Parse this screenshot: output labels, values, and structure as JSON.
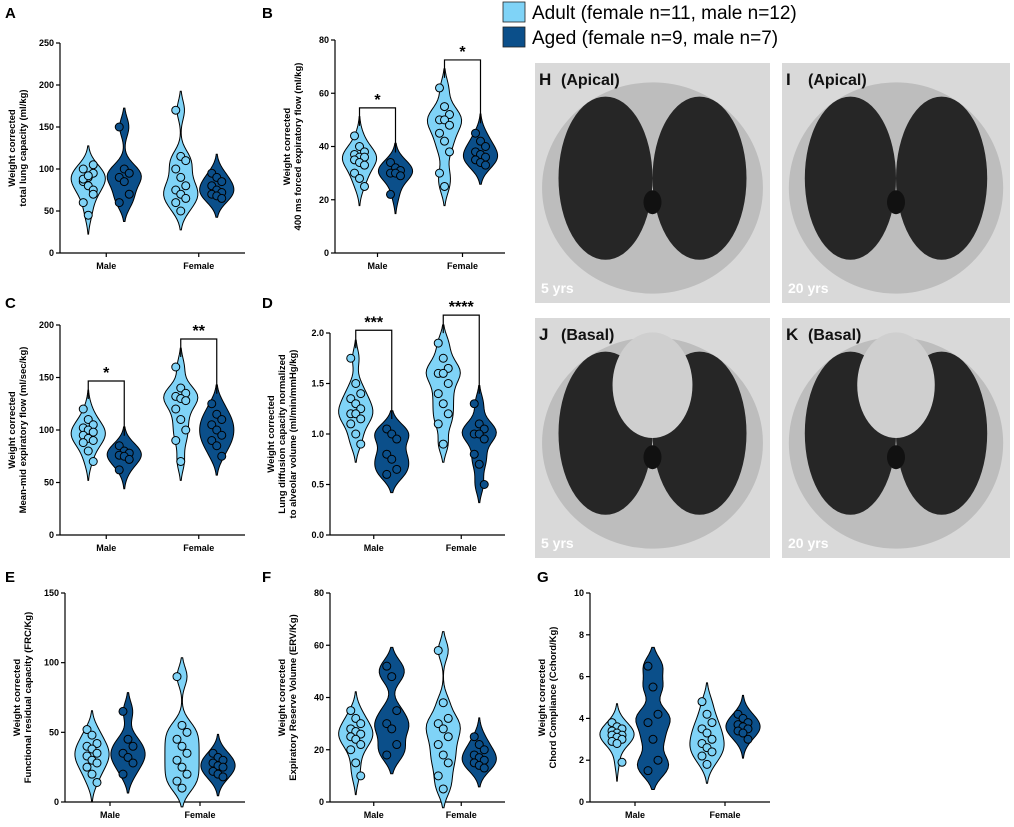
{
  "legend": [
    {
      "label": "Adult (female n=11, male n=12)",
      "color": "#7fd3f7"
    },
    {
      "label": "Aged (female n=9, male n=7)",
      "color": "#0b4f8a"
    }
  ],
  "images": [
    {
      "letter": "H",
      "view": "(Apical)",
      "age": "5 yrs"
    },
    {
      "letter": "I",
      "view": "(Apical)",
      "age": "20 yrs"
    },
    {
      "letter": "J",
      "view": "(Basal)",
      "age": "5 yrs"
    },
    {
      "letter": "K",
      "view": "(Basal)",
      "age": "20 yrs"
    }
  ],
  "chart_data": [
    {
      "type": "violin",
      "panel": "A",
      "ylabel": [
        "Weight corrected",
        "total lung capacity (ml/kg)"
      ],
      "categories": [
        "Male",
        "Female"
      ],
      "ylim": [
        0,
        250
      ],
      "yticks": [
        0,
        50,
        100,
        150,
        200,
        250
      ],
      "series": [
        {
          "values": [
            [
              85,
              90,
              95,
              100,
              80,
              75,
              88,
              92,
              70,
              60,
              45,
              105
            ],
            [
              170,
              115,
              110,
              100,
              90,
              80,
              75,
              70,
              65,
              60,
              50
            ]
          ]
        },
        {
          "values": [
            [
              150,
              100,
              95,
              90,
              85,
              70,
              60
            ],
            [
              95,
              90,
              85,
              80,
              75,
              72,
              70,
              68,
              65
            ]
          ]
        }
      ],
      "annotations": []
    },
    {
      "type": "violin",
      "panel": "B",
      "ylabel": [
        "Weight corrected",
        "400 ms forced expiratory flow (ml/kg)"
      ],
      "categories": [
        "Male",
        "Female"
      ],
      "ylim": [
        0,
        80
      ],
      "yticks": [
        0,
        20,
        40,
        60,
        80
      ],
      "series": [
        {
          "values": [
            [
              44,
              40,
              38,
              37,
              36,
              36,
              35,
              34,
              33,
              30,
              28,
              25
            ],
            [
              62,
              55,
              52,
              50,
              50,
              48,
              45,
              42,
              38,
              30,
              25
            ]
          ]
        },
        {
          "values": [
            [
              34,
              32,
              31,
              30,
              30,
              29,
              22
            ],
            [
              45,
              42,
              40,
              38,
              37,
              36,
              35,
              34,
              33
            ]
          ]
        }
      ],
      "annotations": [
        {
          "text": "*",
          "category": 0
        },
        {
          "text": "*",
          "category": 1
        }
      ]
    },
    {
      "type": "violin",
      "panel": "C",
      "ylabel": [
        "Weight corrected",
        "Mean-mid expiratory flow (ml/sec/kg)"
      ],
      "categories": [
        "Male",
        "Female"
      ],
      "ylim": [
        0,
        200
      ],
      "yticks": [
        0,
        50,
        100,
        150,
        200
      ],
      "series": [
        {
          "values": [
            [
              120,
              110,
              105,
              102,
              100,
              98,
              95,
              92,
              90,
              88,
              80,
              70
            ],
            [
              160,
              140,
              135,
              132,
              130,
              128,
              120,
              110,
              100,
              90,
              70
            ]
          ]
        },
        {
          "values": [
            [
              85,
              80,
              78,
              76,
              75,
              72,
              62
            ],
            [
              125,
              115,
              110,
              105,
              100,
              95,
              90,
              85,
              75
            ]
          ]
        }
      ],
      "annotations": [
        {
          "text": "*",
          "category": 0
        },
        {
          "text": "**",
          "category": 1
        }
      ]
    },
    {
      "type": "violin",
      "panel": "D",
      "ylabel": [
        "Weight corrected",
        "Lung diffusion capacity  normalized",
        "to alveolar volume (ml/min/mmHg/kg)"
      ],
      "categories": [
        "Male",
        "Female"
      ],
      "ylim": [
        0,
        2
      ],
      "yticks": [
        {
          "value": 0,
          "label": "0.0"
        },
        0.5,
        {
          "value": 1,
          "label": "1.0"
        },
        1.5,
        {
          "value": 2,
          "label": "2.0"
        }
      ],
      "series": [
        {
          "values": [
            [
              1.75,
              1.5,
              1.4,
              1.35,
              1.3,
              1.25,
              1.2,
              1.2,
              1.15,
              1.1,
              1.0,
              0.9
            ],
            [
              1.9,
              1.75,
              1.65,
              1.6,
              1.6,
              1.5,
              1.4,
              1.3,
              1.2,
              1.1,
              0.9
            ]
          ]
        },
        {
          "values": [
            [
              1.05,
              1.0,
              0.95,
              0.8,
              0.75,
              0.65,
              0.6
            ],
            [
              1.3,
              1.1,
              1.05,
              1.0,
              1.0,
              0.95,
              0.8,
              0.7,
              0.5
            ]
          ]
        }
      ],
      "annotations": [
        {
          "text": "***",
          "category": 0
        },
        {
          "text": "****",
          "category": 1
        }
      ]
    },
    {
      "type": "violin",
      "panel": "E",
      "ylabel": [
        "Weight corrected",
        "Functional residual capacity (FRC/Kg)"
      ],
      "categories": [
        "Male",
        "Female"
      ],
      "ylim": [
        0,
        150
      ],
      "yticks": [
        0,
        50,
        100,
        150
      ],
      "series": [
        {
          "values": [
            [
              52,
              48,
              42,
              40,
              38,
              35,
              33,
              30,
              28,
              25,
              20,
              14
            ],
            [
              90,
              55,
              50,
              45,
              40,
              35,
              30,
              25,
              20,
              15,
              10
            ]
          ]
        },
        {
          "values": [
            [
              65,
              45,
              40,
              35,
              32,
              28,
              20
            ],
            [
              35,
              32,
              30,
              28,
              26,
              25,
              22,
              20,
              18
            ]
          ]
        }
      ],
      "annotations": []
    },
    {
      "type": "violin",
      "panel": "F",
      "ylabel": [
        "Weight corrected",
        "Expiratory Reserve Volume (ERV/Kg)"
      ],
      "categories": [
        "Male",
        "Female"
      ],
      "ylim": [
        0,
        80
      ],
      "yticks": [
        0,
        20,
        40,
        60,
        80
      ],
      "series": [
        {
          "values": [
            [
              35,
              32,
              30,
              28,
              27,
              26,
              25,
              24,
              22,
              20,
              15,
              10
            ],
            [
              58,
              38,
              32,
              30,
              28,
              25,
              22,
              18,
              15,
              10,
              5
            ]
          ]
        },
        {
          "values": [
            [
              52,
              48,
              35,
              30,
              28,
              22,
              18
            ],
            [
              25,
              22,
              20,
              18,
              17,
              16,
              15,
              14,
              13
            ]
          ]
        }
      ],
      "annotations": []
    },
    {
      "type": "violin",
      "panel": "G",
      "ylabel": [
        "Weight corrected",
        "Chord Compliance (Cchord/Kg)"
      ],
      "categories": [
        "Male",
        "Female"
      ],
      "ylim": [
        0,
        10
      ],
      "yticks": [
        0,
        2,
        4,
        6,
        8,
        10
      ],
      "series": [
        {
          "values": [
            [
              3.8,
              3.6,
              3.5,
              3.4,
              3.3,
              3.2,
              3.2,
              3.1,
              3.0,
              2.9,
              2.8,
              1.9
            ],
            [
              4.8,
              4.2,
              3.8,
              3.5,
              3.3,
              3.0,
              2.8,
              2.6,
              2.4,
              2.2,
              1.8
            ]
          ]
        },
        {
          "values": [
            [
              6.5,
              5.5,
              4.2,
              3.8,
              3.0,
              2.0,
              1.5
            ],
            [
              4.2,
              4.0,
              3.8,
              3.7,
              3.6,
              3.5,
              3.4,
              3.3,
              3.0
            ]
          ]
        }
      ],
      "annotations": []
    }
  ]
}
